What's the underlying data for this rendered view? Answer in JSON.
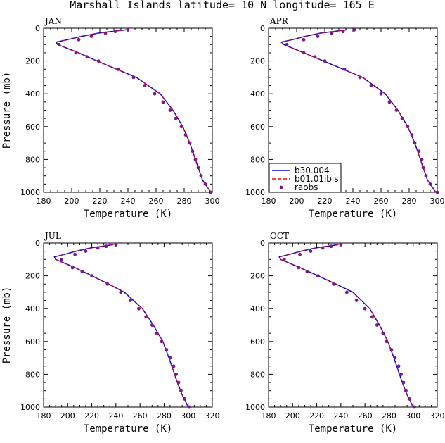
{
  "title": "Marshall Islands  latitude= 10 N longitude= 165 E",
  "chart_data": {
    "type": "line",
    "xlabel": "Temperature (K)",
    "ylabel": "Pressure (mb)",
    "legend_location": "lower-left of APR panel",
    "legend": [
      {
        "name": "b30.004",
        "color": "#0000cc",
        "style": "solid"
      },
      {
        "name": "b01.01ibis",
        "color": "#ff0000",
        "style": "dashed"
      },
      {
        "name": "raobs",
        "color": "#7a1a8a",
        "style": "markers"
      }
    ],
    "panels": [
      {
        "label": "JAN",
        "xlim": [
          180,
          300
        ],
        "xticks": [
          180,
          200,
          220,
          240,
          260,
          280,
          300
        ],
        "ylim": [
          1000,
          0
        ],
        "yticks": [
          0,
          200,
          400,
          600,
          800,
          1000
        ],
        "model_pressure": [
          10,
          20,
          30,
          50,
          70,
          85,
          100,
          150,
          200,
          250,
          300,
          400,
          500,
          600,
          700,
          850,
          925,
          1000
        ],
        "b30_004": [
          239,
          228,
          219,
          207,
          197,
          189,
          190,
          205,
          218,
          232,
          246,
          263,
          272,
          279,
          284,
          290,
          293,
          299
        ],
        "b01_01ibis": [
          239,
          228,
          219,
          207,
          197,
          189,
          190,
          205,
          218,
          232,
          246,
          263,
          272,
          279,
          284,
          290,
          293,
          299
        ],
        "raobs_pressure": [
          10,
          20,
          30,
          50,
          70,
          100,
          150,
          175,
          200,
          250,
          300,
          350,
          400,
          450,
          500,
          550,
          600,
          650,
          700,
          750,
          800,
          850,
          900,
          950,
          1000
        ],
        "raobs_temperature": [
          240,
          231,
          224,
          214,
          205,
          191,
          203,
          211,
          219,
          233,
          244,
          252,
          259,
          265,
          270,
          274,
          278,
          281,
          284,
          286,
          288,
          290,
          292,
          295,
          299
        ]
      },
      {
        "label": "APR",
        "xlim": [
          180,
          300
        ],
        "xticks": [
          180,
          200,
          220,
          240,
          260,
          280,
          300
        ],
        "ylim": [
          1000,
          0
        ],
        "yticks": [
          0,
          200,
          400,
          600,
          800,
          1000
        ],
        "model_pressure": [
          10,
          20,
          30,
          50,
          70,
          85,
          100,
          150,
          200,
          250,
          300,
          400,
          500,
          600,
          700,
          850,
          925,
          1000
        ],
        "b30_004": [
          236,
          226,
          217,
          206,
          197,
          189,
          191,
          205,
          219,
          233,
          247,
          263,
          272,
          279,
          284,
          290,
          293,
          299
        ],
        "b01_01ibis": [
          236,
          226,
          217,
          206,
          197,
          189,
          191,
          205,
          219,
          233,
          247,
          263,
          272,
          279,
          284,
          290,
          293,
          299
        ],
        "raobs_pressure": [
          10,
          20,
          30,
          50,
          70,
          100,
          150,
          175,
          200,
          250,
          300,
          350,
          400,
          450,
          500,
          550,
          600,
          650,
          700,
          750,
          800,
          850,
          900,
          950,
          1000
        ],
        "raobs_temperature": [
          241,
          233,
          225,
          215,
          205,
          193,
          205,
          213,
          220,
          234,
          245,
          253,
          260,
          266,
          271,
          275,
          279,
          282,
          284,
          287,
          289,
          290,
          292,
          295,
          300
        ]
      },
      {
        "label": "JUL",
        "xlim": [
          180,
          320
        ],
        "xticks": [
          180,
          200,
          220,
          240,
          260,
          280,
          300,
          320
        ],
        "ylim": [
          1000,
          0
        ],
        "yticks": [
          0,
          200,
          400,
          600,
          800,
          1000
        ],
        "model_pressure": [
          10,
          20,
          30,
          50,
          70,
          85,
          100,
          150,
          200,
          250,
          300,
          400,
          500,
          600,
          700,
          850,
          925,
          1000
        ],
        "b30_004": [
          238,
          228,
          219,
          207,
          197,
          189,
          190,
          206,
          220,
          234,
          247,
          262,
          271,
          279,
          284,
          291,
          295,
          300
        ],
        "b01_01ibis": [
          238,
          228,
          219,
          207,
          197,
          189,
          190,
          206,
          220,
          234,
          247,
          262,
          271,
          279,
          284,
          291,
          295,
          300
        ],
        "raobs_pressure": [
          10,
          20,
          30,
          50,
          70,
          100,
          150,
          175,
          200,
          250,
          300,
          350,
          400,
          450,
          500,
          550,
          600,
          650,
          700,
          750,
          800,
          850,
          900,
          950,
          1000
        ],
        "raobs_temperature": [
          240,
          232,
          225,
          215,
          206,
          195,
          204,
          212,
          220,
          233,
          244,
          252,
          259,
          265,
          270,
          274,
          278,
          282,
          285,
          288,
          290,
          292,
          294,
          297,
          301
        ]
      },
      {
        "label": "OCT",
        "xlim": [
          180,
          320
        ],
        "xticks": [
          180,
          200,
          220,
          240,
          260,
          280,
          300,
          320
        ],
        "ylim": [
          1000,
          0
        ],
        "yticks": [
          0,
          200,
          400,
          600,
          800,
          1000
        ],
        "model_pressure": [
          10,
          20,
          30,
          50,
          70,
          85,
          100,
          150,
          200,
          250,
          300,
          400,
          500,
          600,
          700,
          850,
          925,
          1000
        ],
        "b30_004": [
          238,
          228,
          219,
          207,
          197,
          189,
          190,
          206,
          221,
          236,
          250,
          264,
          272,
          279,
          284,
          291,
          295,
          300
        ],
        "b01_01ibis": [
          238,
          228,
          219,
          207,
          197,
          189,
          190,
          206,
          221,
          236,
          250,
          264,
          272,
          279,
          284,
          291,
          295,
          300
        ],
        "raobs_pressure": [
          10,
          20,
          30,
          50,
          70,
          100,
          150,
          175,
          200,
          250,
          300,
          350,
          400,
          450,
          500,
          550,
          600,
          650,
          700,
          750,
          800,
          850,
          900,
          950,
          1000
        ],
        "raobs_temperature": [
          240,
          232,
          225,
          215,
          206,
          193,
          205,
          212,
          221,
          234,
          245,
          253,
          260,
          266,
          270,
          275,
          278,
          282,
          285,
          288,
          290,
          292,
          294,
          297,
          301
        ]
      }
    ]
  }
}
